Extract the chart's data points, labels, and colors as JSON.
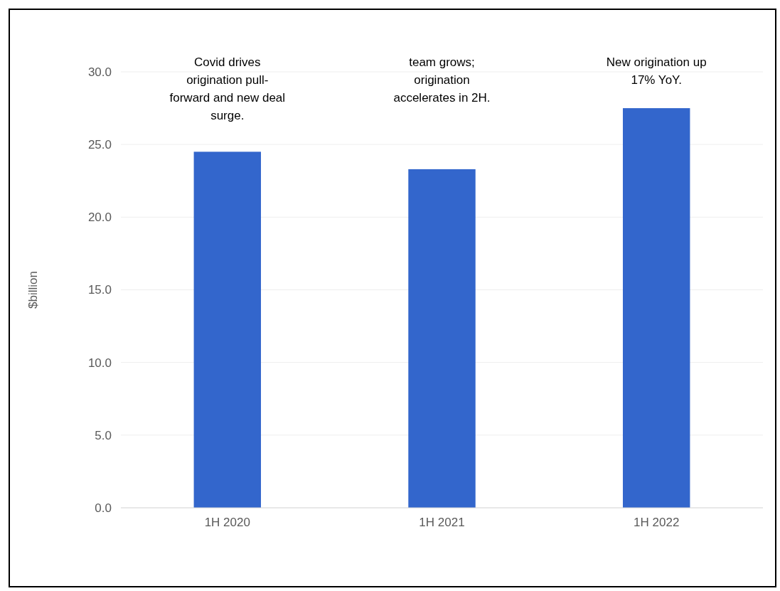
{
  "chart_data": {
    "type": "bar",
    "ylabel": "$billion",
    "categories": [
      "1H 2020",
      "1H 2021",
      "1H 2022"
    ],
    "values": [
      24.5,
      23.3,
      27.5
    ],
    "color": "#3366cc",
    "ylim": [
      0,
      30
    ],
    "yticks": [
      {
        "value": 0,
        "label": "0.0"
      },
      {
        "value": 5,
        "label": "5.0"
      },
      {
        "value": 10,
        "label": "10.0"
      },
      {
        "value": 15,
        "label": "15.0"
      },
      {
        "value": 20,
        "label": "20.0"
      },
      {
        "value": 25,
        "label": "25.0"
      },
      {
        "value": 30,
        "label": "30.0"
      }
    ],
    "grid": "y",
    "annotations": [
      "Covid drives origination pull-forward and new deal surge.",
      "team grows; origination accelerates in 2H.",
      "New origination up 17% YoY."
    ]
  }
}
